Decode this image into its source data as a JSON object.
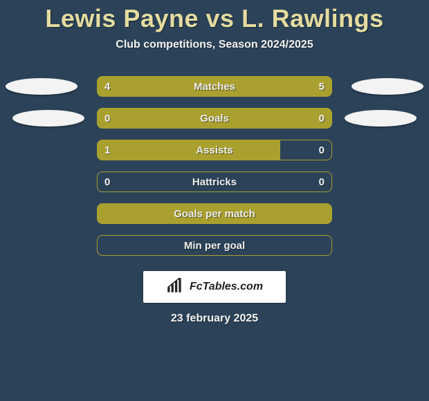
{
  "colors": {
    "background": "#2b4258",
    "bar_fill": "#aaa02f",
    "bar_border": "#aaa02f",
    "title": "#e4dca0",
    "text": "#f4f4f4",
    "ellipse": "#f3f3f3",
    "badge_bg": "#ffffff",
    "badge_text": "#222222"
  },
  "layout": {
    "bar_track_width": 340,
    "bar_track_height": 30,
    "border_radius": 8,
    "ellipse_width": 104,
    "ellipse_height": 24
  },
  "header": {
    "player_left": "Lewis Payne",
    "player_right": "L. Rawlings",
    "vs": "vs",
    "subtitle": "Club competitions, Season 2024/2025"
  },
  "stats": [
    {
      "label": "Matches",
      "left_val": "4",
      "right_val": "5",
      "left_pct": 44,
      "right_pct": 56,
      "show_vals": true,
      "show_ellipses": true,
      "ellipse_class": "1"
    },
    {
      "label": "Goals",
      "left_val": "0",
      "right_val": "0",
      "left_pct": 100,
      "right_pct": 0,
      "show_vals": true,
      "show_ellipses": true,
      "full": true,
      "ellipse_class": "2"
    },
    {
      "label": "Assists",
      "left_val": "1",
      "right_val": "0",
      "left_pct": 78,
      "right_pct": 0,
      "show_vals": true,
      "show_ellipses": false
    },
    {
      "label": "Hattricks",
      "left_val": "0",
      "right_val": "0",
      "left_pct": 0,
      "right_pct": 0,
      "show_vals": true,
      "show_ellipses": false
    },
    {
      "label": "Goals per match",
      "left_val": "",
      "right_val": "",
      "left_pct": 100,
      "right_pct": 0,
      "show_vals": false,
      "show_ellipses": false,
      "full": true
    },
    {
      "label": "Min per goal",
      "left_val": "",
      "right_val": "",
      "left_pct": 0,
      "right_pct": 0,
      "show_vals": false,
      "show_ellipses": false
    }
  ],
  "footer": {
    "badge_text": "FcTables.com",
    "date": "23 february 2025"
  }
}
